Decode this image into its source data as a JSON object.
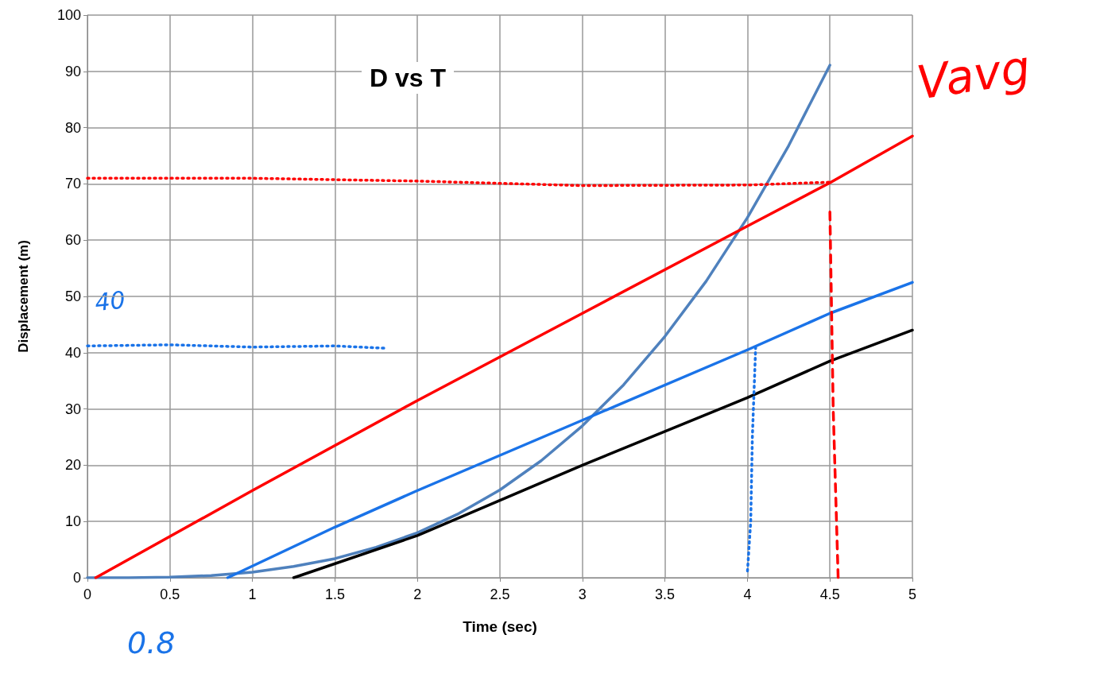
{
  "chart_data": {
    "type": "line",
    "title": "D vs T",
    "xlabel": "Time (sec)",
    "ylabel": "Displacement (m)",
    "xlim": [
      0,
      5
    ],
    "xticks": [
      0,
      0.5,
      1,
      1.5,
      2,
      2.5,
      3,
      3.5,
      4,
      4.5,
      5
    ],
    "ylim": [
      0,
      100
    ],
    "yticks": [
      0,
      10,
      20,
      30,
      40,
      50,
      60,
      70,
      80,
      90,
      100
    ],
    "grid": true,
    "marker": "none",
    "line_style": "solid",
    "series": [
      {
        "color": "#4f81bd",
        "x": [
          0,
          0.25,
          0.5,
          0.75,
          1,
          1.25,
          1.5,
          1.75,
          2,
          2.25,
          2.5,
          2.75,
          3,
          3.25,
          3.5,
          3.75,
          4,
          4.25,
          4.5
        ],
        "values": [
          0,
          0,
          0.1,
          0.4,
          1,
          2,
          3.4,
          5.4,
          8,
          11.4,
          15.6,
          20.8,
          27,
          34.3,
          42.9,
          52.7,
          64,
          76.8,
          91.1
        ]
      },
      {
        "color": "#ff0000",
        "x": [
          0.05,
          1,
          2,
          3,
          4,
          4.5,
          5
        ],
        "values": [
          0,
          15.5,
          31.5,
          47,
          62.5,
          70.2,
          78.5
        ]
      },
      {
        "color": "#1a73e8",
        "x": [
          0.85,
          1.5,
          2,
          3,
          4,
          4.5,
          5
        ],
        "values": [
          0,
          9,
          15.5,
          28,
          40.5,
          47,
          52.5
        ]
      },
      {
        "color": "#000000",
        "x": [
          1.25,
          2,
          3,
          4,
          4.5,
          5
        ],
        "values": [
          0,
          7.5,
          20,
          32,
          38.5,
          44
        ]
      },
      {
        "color": "#ff0000",
        "line_style": "dotted",
        "x": [
          0,
          1,
          2,
          3,
          4,
          4.5
        ],
        "values": [
          71,
          71,
          70.5,
          69.7,
          69.8,
          70.3
        ]
      },
      {
        "color": "#ff0000",
        "line_style": "dashed",
        "x": [
          4.5,
          4.52,
          4.55
        ],
        "values": [
          65,
          30,
          0
        ]
      },
      {
        "color": "#1a73e8",
        "line_style": "dotted",
        "x": [
          0,
          0.5,
          1,
          1.5,
          1.8
        ],
        "values": [
          41.2,
          41.4,
          41,
          41.2,
          40.8
        ]
      },
      {
        "color": "#1a73e8",
        "line_style": "dotted",
        "x": [
          4.05,
          4.03,
          4.02,
          4.0
        ],
        "values": [
          41,
          25,
          10,
          1
        ]
      }
    ],
    "annotations": [
      "Vavg",
      "40",
      "0.8"
    ]
  }
}
